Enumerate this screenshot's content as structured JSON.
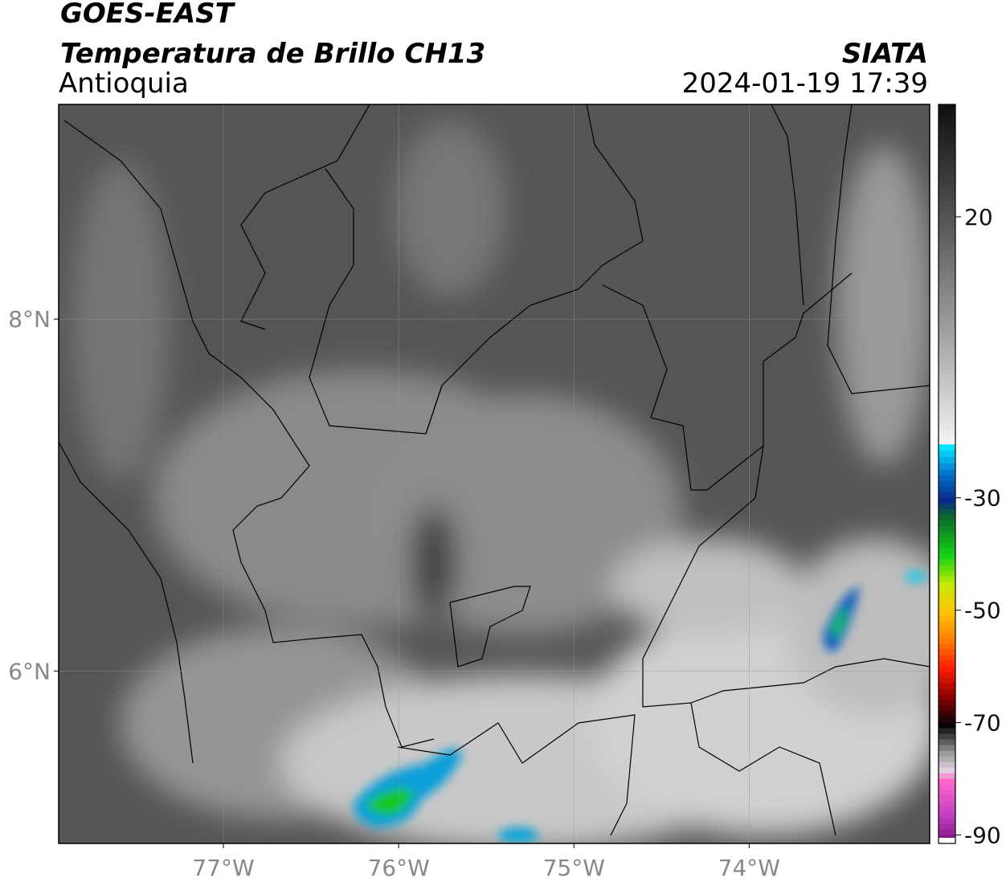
{
  "header": {
    "title": "GOES-EAST",
    "subtitle": "Temperatura de Brillo CH13",
    "region": "Antioquia",
    "source": "SIATA",
    "datetime": "2024-01-19 17:39"
  },
  "map": {
    "lonlim": [
      -77.94,
      -72.97
    ],
    "latlim": [
      5.02,
      9.22
    ],
    "lat_ticks": [
      {
        "value": 8,
        "label": "8°N"
      },
      {
        "value": 6,
        "label": "6°N"
      }
    ],
    "lon_ticks": [
      {
        "value": -77,
        "label": "77°W"
      },
      {
        "value": -76,
        "label": "76°W"
      },
      {
        "value": -75,
        "label": "75°W"
      },
      {
        "value": -74,
        "label": "74°W"
      }
    ],
    "grid": true
  },
  "colorbar": {
    "lim": [
      -91.5,
      40
    ],
    "ticks": [
      20,
      -30,
      -50,
      -70,
      -90
    ],
    "stops": [
      [
        40,
        "#111111"
      ],
      [
        20,
        "#555555"
      ],
      [
        0,
        "#a0a0a0"
      ],
      [
        -20,
        "#f4f4f4"
      ],
      [
        -20.5,
        "#00e5ff"
      ],
      [
        -25,
        "#0077cc"
      ],
      [
        -30,
        "#0a2a8a"
      ],
      [
        -33,
        "#0b6b2a"
      ],
      [
        -40,
        "#18d418"
      ],
      [
        -45,
        "#c8e800"
      ],
      [
        -50,
        "#ffc400"
      ],
      [
        -55,
        "#ff7a00"
      ],
      [
        -60,
        "#ff1a00"
      ],
      [
        -65,
        "#8a0000"
      ],
      [
        -70,
        "#050505"
      ],
      [
        -75,
        "#9a9a9a"
      ],
      [
        -78,
        "#e0d0e0"
      ],
      [
        -80,
        "#ff66cc"
      ],
      [
        -86,
        "#c040c0"
      ],
      [
        -90,
        "#8a1a8a"
      ],
      [
        -90.5,
        "#ffffff"
      ]
    ]
  }
}
